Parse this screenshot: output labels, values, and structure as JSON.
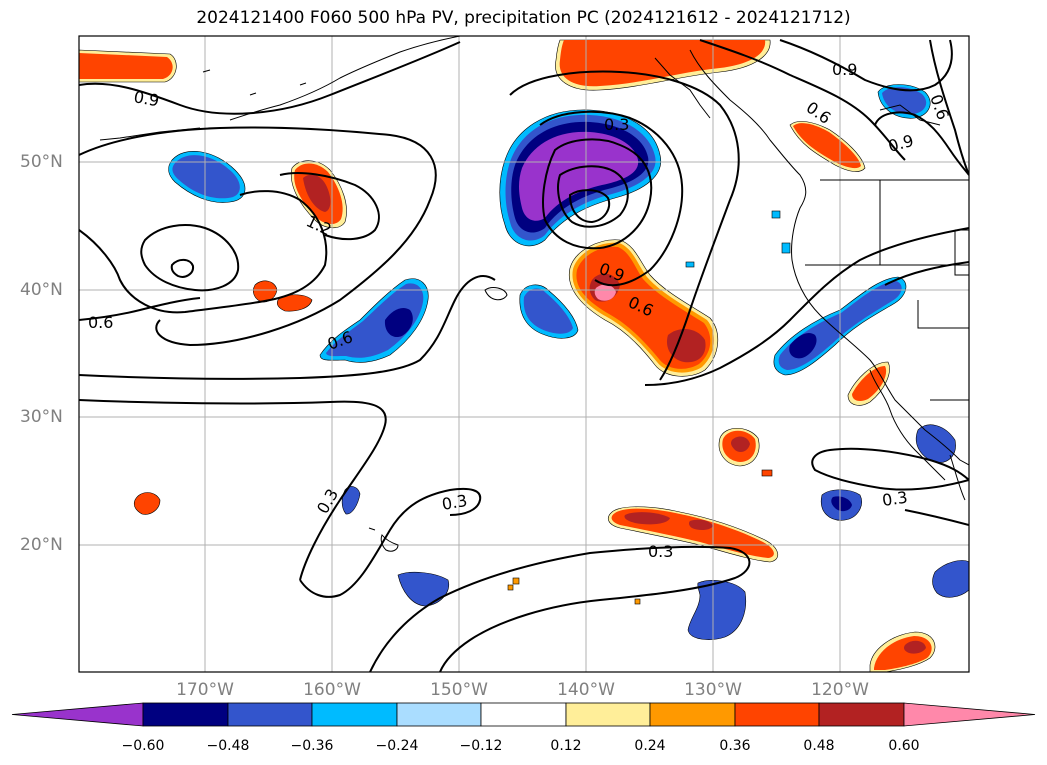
{
  "title": "2024121400 F060 500 hPa PV, precipitation PC (2024121612 - 2024121712)",
  "lat_labels": [
    "50°N",
    "40°N",
    "30°N",
    "20°N"
  ],
  "lon_labels": [
    "170°W",
    "160°W",
    "150°W",
    "140°W",
    "130°W",
    "120°W"
  ],
  "colorbar": {
    "ticks": [
      "−0.60",
      "−0.48",
      "−0.36",
      "−0.24",
      "−0.12",
      "0.12",
      "0.24",
      "0.36",
      "0.48",
      "0.60"
    ],
    "colors": [
      "#9933cc",
      "#000080",
      "#3355cc",
      "#00bbff",
      "#aaddff",
      "#ffffff",
      "#ffee99",
      "#ff9900",
      "#ff4400",
      "#b22222",
      "#ff88aa"
    ]
  },
  "contour_labels": [
    "0.9",
    "0.3",
    "0.9",
    "0.6",
    "0.9",
    "0.6",
    "1.2",
    "0.6",
    "0.6",
    "0.9",
    "0.6",
    "0.3",
    "0.3",
    "0.3",
    "0.3"
  ],
  "colors": {
    "neg_extreme": "#9933cc",
    "neg_strong": "#000080",
    "neg_mid": "#3355cc",
    "neg_weak": "#00bbff",
    "neg_faint": "#aaddff",
    "pos_faint": "#ffee99",
    "pos_weak": "#ff9900",
    "pos_mid": "#ff4400",
    "pos_strong": "#b22222",
    "pos_extreme": "#ff88aa"
  }
}
